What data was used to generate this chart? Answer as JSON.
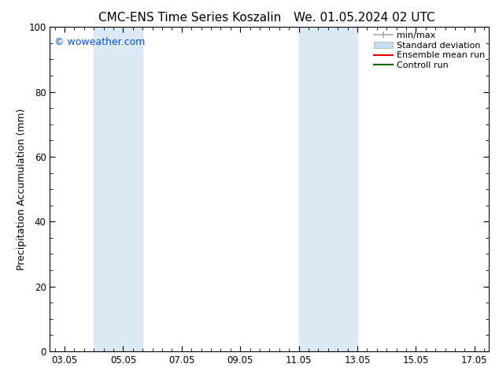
{
  "title_left": "CMC-ENS Time Series Koszalin",
  "title_right": "We. 01.05.2024 02 UTC",
  "ylabel": "Precipitation Accumulation (mm)",
  "ylim": [
    0,
    100
  ],
  "yticks": [
    0,
    20,
    40,
    60,
    80,
    100
  ],
  "xtick_labels": [
    "03.05",
    "05.05",
    "07.05",
    "09.05",
    "11.05",
    "13.05",
    "15.05",
    "17.05"
  ],
  "xtick_positions": [
    3,
    5,
    7,
    9,
    11,
    13,
    15,
    17
  ],
  "xlim": [
    2.5,
    17.5
  ],
  "shaded_bands": [
    {
      "x_start": 4.0,
      "x_end": 4.83,
      "color": "#dce9f5"
    },
    {
      "x_start": 4.83,
      "x_end": 5.67,
      "color": "#dce9f5"
    },
    {
      "x_start": 11.0,
      "x_end": 11.83,
      "color": "#dce9f5"
    },
    {
      "x_start": 11.83,
      "x_end": 13.0,
      "color": "#dce9f5"
    }
  ],
  "watermark_text": "© woweather.com",
  "watermark_color": "#0055cc",
  "legend_entries": [
    {
      "label": "min/max",
      "color": "#aaaaaa",
      "type": "minmax"
    },
    {
      "label": "Standard deviation",
      "color": "#c8ddf0",
      "type": "patch"
    },
    {
      "label": "Ensemble mean run",
      "color": "#dd0000",
      "type": "line"
    },
    {
      "label": "Controll run",
      "color": "#006600",
      "type": "line"
    }
  ],
  "background_color": "#ffffff",
  "title_fontsize": 11,
  "label_fontsize": 9,
  "tick_fontsize": 8.5,
  "legend_fontsize": 8
}
